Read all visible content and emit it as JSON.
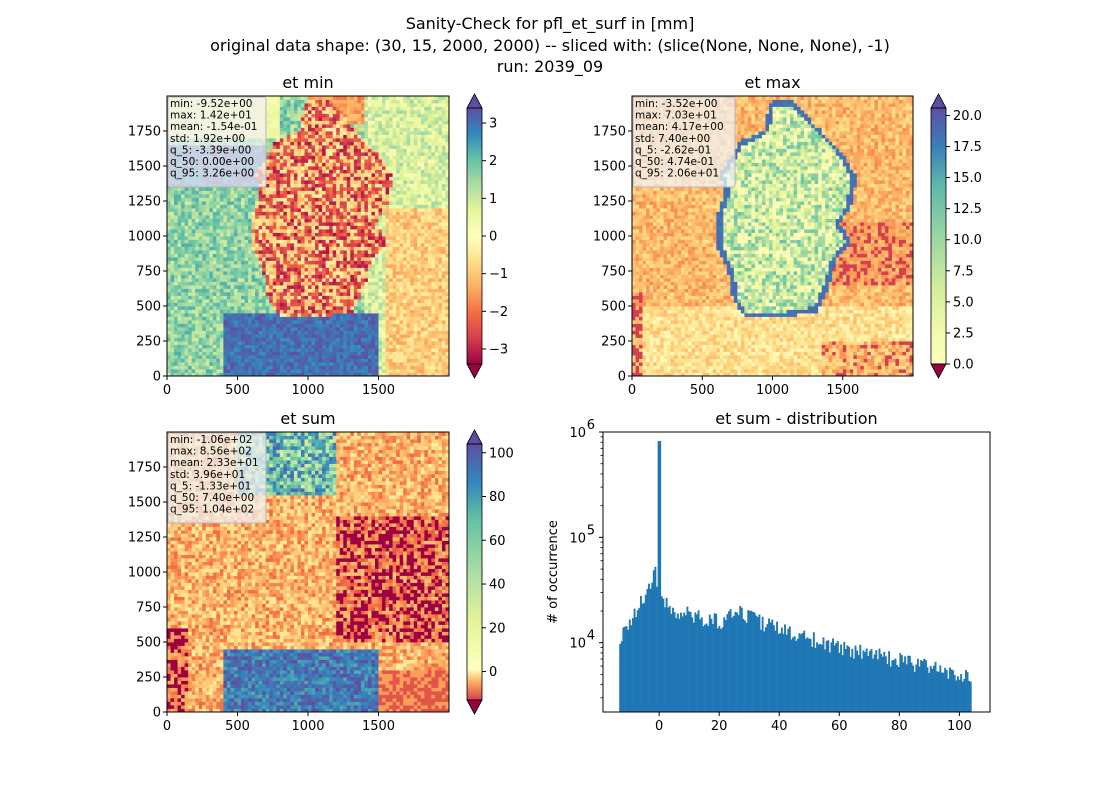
{
  "suptitle": [
    "Sanity-Check for pfl_et_surf in [mm]",
    "original data shape: (30, 15, 2000, 2000) -- sliced with: (slice(None, None, None), -1)",
    "run: 2039_09"
  ],
  "map_axes": {
    "x_ticks": [
      "0",
      "500",
      "1000",
      "1500"
    ],
    "y_ticks": [
      "0",
      "250",
      "500",
      "750",
      "1000",
      "1250",
      "1500",
      "1750"
    ]
  },
  "colors": {
    "colormap": "Spectral",
    "hist_bar": "#1f77b4"
  },
  "chart_data": [
    {
      "type": "heatmap",
      "title": "et min",
      "xlim": [
        0,
        2000
      ],
      "ylim": [
        0,
        2000
      ],
      "colorbar": {
        "ticks": [
          "−3",
          "−2",
          "−1",
          "0",
          "1",
          "2",
          "3"
        ],
        "tick_values": [
          -3,
          -2,
          -1,
          0,
          1,
          2,
          3
        ],
        "range": [
          -3.4,
          3.4
        ],
        "extend": "both"
      },
      "stats": [
        "min: -9.52e+00",
        "max: 1.42e+01",
        "mean: -1.54e-01",
        "std: 1.92e+00",
        "q_5: -3.39e+00",
        "q_50: 0.00e+00",
        "q_95: 3.26e+00"
      ]
    },
    {
      "type": "heatmap",
      "title": "et max",
      "xlim": [
        0,
        2000
      ],
      "ylim": [
        0,
        2000
      ],
      "colorbar": {
        "ticks": [
          "0.0",
          "2.5",
          "5.0",
          "7.5",
          "10.0",
          "12.5",
          "15.0",
          "17.5",
          "20.0"
        ],
        "tick_values": [
          0,
          2.5,
          5,
          7.5,
          10,
          12.5,
          15,
          17.5,
          20
        ],
        "range": [
          0,
          20.6
        ],
        "extend": "both"
      },
      "stats": [
        "min: -3.52e+00",
        "max: 7.03e+01",
        "mean: 4.17e+00",
        "std: 7.40e+00",
        "q_5: -2.62e-01",
        "q_50: 4.74e-01",
        "q_95: 2.06e+01"
      ]
    },
    {
      "type": "heatmap",
      "title": "et sum",
      "xlim": [
        0,
        2000
      ],
      "ylim": [
        0,
        2000
      ],
      "colorbar": {
        "ticks": [
          "0",
          "20",
          "40",
          "60",
          "80",
          "100"
        ],
        "tick_values": [
          0,
          20,
          40,
          60,
          80,
          100
        ],
        "range": [
          -13,
          104
        ],
        "extend": "both"
      },
      "stats": [
        "min: -1.06e+02",
        "max: 8.56e+02",
        "mean: 2.33e+01",
        "std: 3.96e+01",
        "q_5: -1.33e+01",
        "q_50: 7.40e+00",
        "q_95: 1.04e+02"
      ]
    },
    {
      "type": "bar",
      "title": "et sum - distribution",
      "xlabel": "",
      "ylabel": "# of occurrence",
      "y_scale": "log",
      "xlim": [
        -18.7,
        110.2
      ],
      "ylim": [
        2200,
        1000000
      ],
      "x_ticks": [
        "0",
        "20",
        "40",
        "60",
        "80",
        "100"
      ],
      "x_tick_values": [
        0,
        20,
        40,
        60,
        80,
        100
      ],
      "y_ticks": [
        {
          "base": "10",
          "exp": "4",
          "value": 10000
        },
        {
          "base": "10",
          "exp": "5",
          "value": 100000
        },
        {
          "base": "10",
          "exp": "6",
          "value": 1000000
        }
      ],
      "bin_range": [
        -13.3,
        104
      ],
      "anchors": [
        [
          -13.3,
          11000
        ],
        [
          -10,
          15000
        ],
        [
          -6,
          25000
        ],
        [
          -4,
          32000
        ],
        [
          -2,
          45000
        ],
        [
          -1,
          50000
        ],
        [
          -0.3,
          0
        ],
        [
          0,
          820000
        ],
        [
          0.4,
          0
        ],
        [
          1,
          25000
        ],
        [
          3,
          22000
        ],
        [
          6,
          20000
        ],
        [
          10,
          19000
        ],
        [
          15,
          17000
        ],
        [
          20,
          16000
        ],
        [
          25,
          20000
        ],
        [
          30,
          18000
        ],
        [
          35,
          15000
        ],
        [
          40,
          13500
        ],
        [
          50,
          11000
        ],
        [
          60,
          9000
        ],
        [
          70,
          8000
        ],
        [
          80,
          6800
        ],
        [
          90,
          6000
        ],
        [
          100,
          5200
        ],
        [
          104,
          4800
        ]
      ]
    }
  ]
}
